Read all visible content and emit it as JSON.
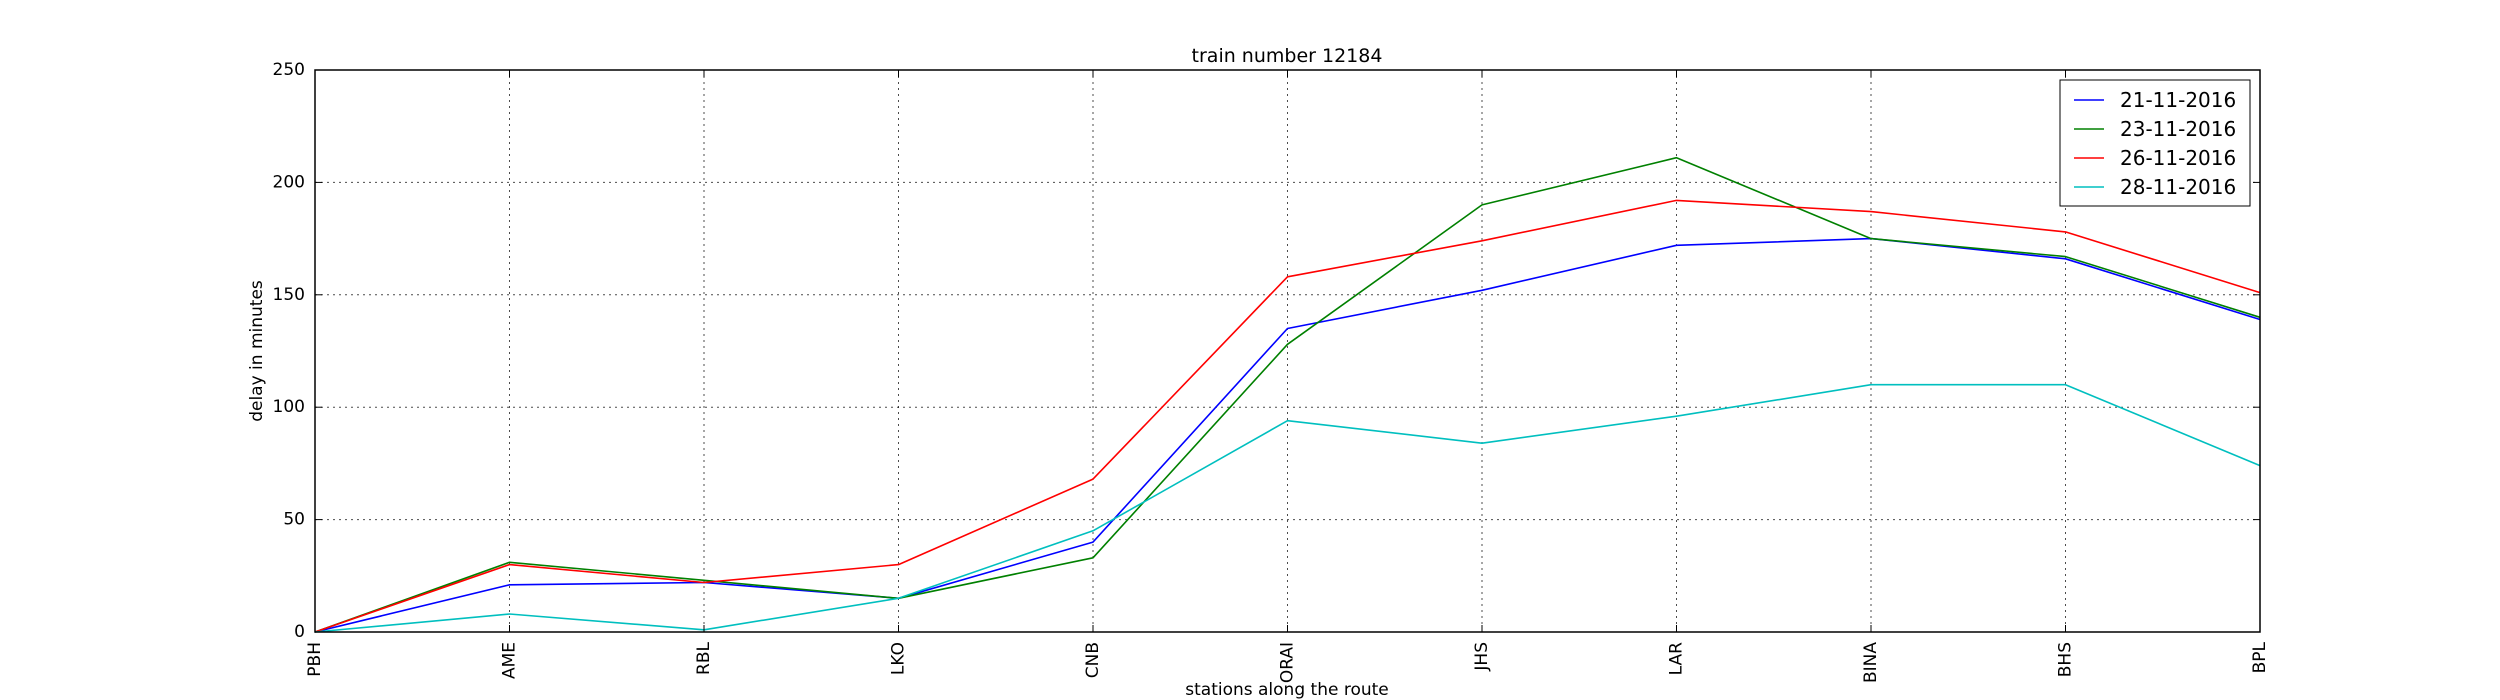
{
  "chart_data": {
    "type": "line",
    "title": "train number 12184",
    "xlabel": "stations along the route",
    "ylabel": "delay in minutes",
    "categories": [
      "PBH",
      "AME",
      "RBL",
      "LKO",
      "CNB",
      "ORAI",
      "JHS",
      "LAR",
      "BINA",
      "BHS",
      "BPL"
    ],
    "ylim": [
      0,
      250
    ],
    "yticks": [
      "0",
      "50",
      "100",
      "150",
      "200",
      "250"
    ],
    "grid": true,
    "legend_position": "top-right",
    "series": [
      {
        "name": "21-11-2016",
        "color": "#0000ff",
        "values": [
          0,
          21,
          22,
          15,
          40,
          135,
          152,
          172,
          175,
          166,
          139
        ]
      },
      {
        "name": "23-11-2016",
        "color": "#008000",
        "values": [
          0,
          31,
          23,
          15,
          33,
          128,
          190,
          211,
          175,
          167,
          140
        ]
      },
      {
        "name": "26-11-2016",
        "color": "#ff0000",
        "values": [
          0,
          30,
          22,
          30,
          68,
          158,
          174,
          192,
          187,
          178,
          151
        ]
      },
      {
        "name": "28-11-2016",
        "color": "#00bfbf",
        "values": [
          0,
          8,
          1,
          15,
          45,
          94,
          84,
          96,
          110,
          110,
          74
        ]
      }
    ]
  }
}
